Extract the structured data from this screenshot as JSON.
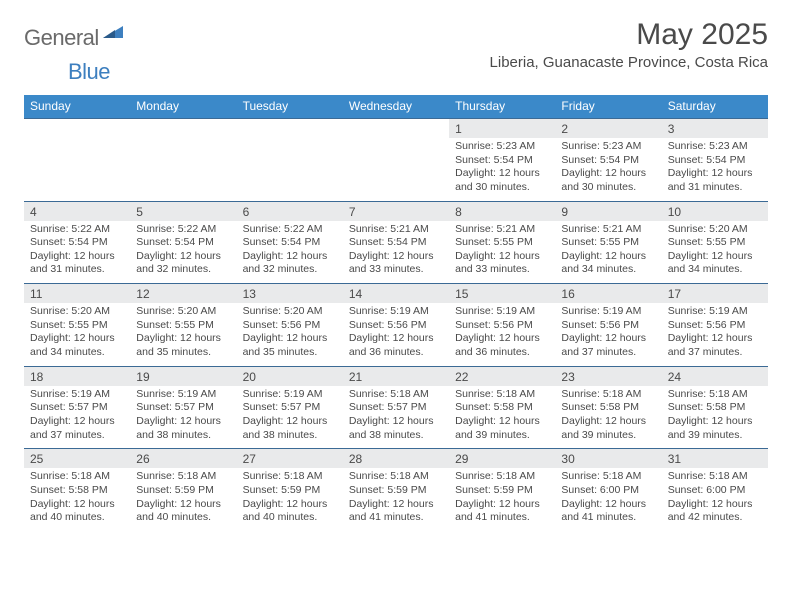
{
  "logo": {
    "text1": "General",
    "text2": "Blue"
  },
  "title": "May 2025",
  "location": "Liberia, Guanacaste Province, Costa Rica",
  "colors": {
    "header_bg": "#3b89c9",
    "header_text": "#ffffff",
    "row_border": "#3b6a95",
    "daynum_bg": "#e9eaeb",
    "text": "#4a4a4a",
    "logo_general": "#6a6a6a",
    "logo_blue": "#3d7fbf"
  },
  "day_names": [
    "Sunday",
    "Monday",
    "Tuesday",
    "Wednesday",
    "Thursday",
    "Friday",
    "Saturday"
  ],
  "weeks": [
    [
      null,
      null,
      null,
      null,
      {
        "n": "1",
        "sr": "5:23 AM",
        "ss": "5:54 PM",
        "dl": "12 hours and 30 minutes."
      },
      {
        "n": "2",
        "sr": "5:23 AM",
        "ss": "5:54 PM",
        "dl": "12 hours and 30 minutes."
      },
      {
        "n": "3",
        "sr": "5:23 AM",
        "ss": "5:54 PM",
        "dl": "12 hours and 31 minutes."
      }
    ],
    [
      {
        "n": "4",
        "sr": "5:22 AM",
        "ss": "5:54 PM",
        "dl": "12 hours and 31 minutes."
      },
      {
        "n": "5",
        "sr": "5:22 AM",
        "ss": "5:54 PM",
        "dl": "12 hours and 32 minutes."
      },
      {
        "n": "6",
        "sr": "5:22 AM",
        "ss": "5:54 PM",
        "dl": "12 hours and 32 minutes."
      },
      {
        "n": "7",
        "sr": "5:21 AM",
        "ss": "5:54 PM",
        "dl": "12 hours and 33 minutes."
      },
      {
        "n": "8",
        "sr": "5:21 AM",
        "ss": "5:55 PM",
        "dl": "12 hours and 33 minutes."
      },
      {
        "n": "9",
        "sr": "5:21 AM",
        "ss": "5:55 PM",
        "dl": "12 hours and 34 minutes."
      },
      {
        "n": "10",
        "sr": "5:20 AM",
        "ss": "5:55 PM",
        "dl": "12 hours and 34 minutes."
      }
    ],
    [
      {
        "n": "11",
        "sr": "5:20 AM",
        "ss": "5:55 PM",
        "dl": "12 hours and 34 minutes."
      },
      {
        "n": "12",
        "sr": "5:20 AM",
        "ss": "5:55 PM",
        "dl": "12 hours and 35 minutes."
      },
      {
        "n": "13",
        "sr": "5:20 AM",
        "ss": "5:56 PM",
        "dl": "12 hours and 35 minutes."
      },
      {
        "n": "14",
        "sr": "5:19 AM",
        "ss": "5:56 PM",
        "dl": "12 hours and 36 minutes."
      },
      {
        "n": "15",
        "sr": "5:19 AM",
        "ss": "5:56 PM",
        "dl": "12 hours and 36 minutes."
      },
      {
        "n": "16",
        "sr": "5:19 AM",
        "ss": "5:56 PM",
        "dl": "12 hours and 37 minutes."
      },
      {
        "n": "17",
        "sr": "5:19 AM",
        "ss": "5:56 PM",
        "dl": "12 hours and 37 minutes."
      }
    ],
    [
      {
        "n": "18",
        "sr": "5:19 AM",
        "ss": "5:57 PM",
        "dl": "12 hours and 37 minutes."
      },
      {
        "n": "19",
        "sr": "5:19 AM",
        "ss": "5:57 PM",
        "dl": "12 hours and 38 minutes."
      },
      {
        "n": "20",
        "sr": "5:19 AM",
        "ss": "5:57 PM",
        "dl": "12 hours and 38 minutes."
      },
      {
        "n": "21",
        "sr": "5:18 AM",
        "ss": "5:57 PM",
        "dl": "12 hours and 38 minutes."
      },
      {
        "n": "22",
        "sr": "5:18 AM",
        "ss": "5:58 PM",
        "dl": "12 hours and 39 minutes."
      },
      {
        "n": "23",
        "sr": "5:18 AM",
        "ss": "5:58 PM",
        "dl": "12 hours and 39 minutes."
      },
      {
        "n": "24",
        "sr": "5:18 AM",
        "ss": "5:58 PM",
        "dl": "12 hours and 39 minutes."
      }
    ],
    [
      {
        "n": "25",
        "sr": "5:18 AM",
        "ss": "5:58 PM",
        "dl": "12 hours and 40 minutes."
      },
      {
        "n": "26",
        "sr": "5:18 AM",
        "ss": "5:59 PM",
        "dl": "12 hours and 40 minutes."
      },
      {
        "n": "27",
        "sr": "5:18 AM",
        "ss": "5:59 PM",
        "dl": "12 hours and 40 minutes."
      },
      {
        "n": "28",
        "sr": "5:18 AM",
        "ss": "5:59 PM",
        "dl": "12 hours and 41 minutes."
      },
      {
        "n": "29",
        "sr": "5:18 AM",
        "ss": "5:59 PM",
        "dl": "12 hours and 41 minutes."
      },
      {
        "n": "30",
        "sr": "5:18 AM",
        "ss": "6:00 PM",
        "dl": "12 hours and 41 minutes."
      },
      {
        "n": "31",
        "sr": "5:18 AM",
        "ss": "6:00 PM",
        "dl": "12 hours and 42 minutes."
      }
    ]
  ],
  "labels": {
    "sunrise": "Sunrise: ",
    "sunset": "Sunset: ",
    "daylight": "Daylight: "
  }
}
